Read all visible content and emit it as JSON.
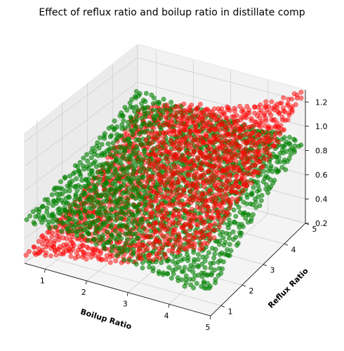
{
  "chart_data": {
    "type": "scatter",
    "title": "Effect of reflux ratio and boilup ratio in distillate comp",
    "xlabel": "Boilup Ratio",
    "ylabel": "Reflux Ratio",
    "zlabel": "",
    "xlim": [
      0.5,
      5.0
    ],
    "ylim": [
      0.5,
      5.0
    ],
    "zlim": [
      0.2,
      1.3
    ],
    "xticks": [
      "1",
      "2",
      "3",
      "4",
      "5"
    ],
    "yticks": [
      "1",
      "2",
      "3",
      "4",
      "5"
    ],
    "zticks": [
      "0.2",
      "0.4",
      "0.6",
      "0.8",
      "1.0",
      "1.2"
    ],
    "grid": true,
    "projection": "3d",
    "series": [
      {
        "color": "#008000",
        "alpha": 0.6,
        "marker": "o",
        "count_per_axis": 40,
        "points_sample": [
          {
            "x": 0.5,
            "y": 0.5,
            "z": 0.55
          },
          {
            "x": 0.5,
            "y": 5.0,
            "z": 0.95
          },
          {
            "x": 5.0,
            "y": 0.5,
            "z": 0.45
          },
          {
            "x": 5.0,
            "y": 5.0,
            "z": 0.62
          },
          {
            "x": 2.75,
            "y": 2.75,
            "z": 0.9
          }
        ]
      },
      {
        "color": "#ff0000",
        "alpha": 0.5,
        "marker": "o",
        "count_per_axis": 40,
        "points_sample": [
          {
            "x": 0.5,
            "y": 0.5,
            "z": 0.2
          },
          {
            "x": 0.5,
            "y": 5.0,
            "z": 1.0
          },
          {
            "x": 5.0,
            "y": 0.5,
            "z": 0.75
          },
          {
            "x": 5.0,
            "y": 5.0,
            "z": 1.25
          },
          {
            "x": 2.75,
            "y": 2.75,
            "z": 0.8
          }
        ]
      }
    ]
  }
}
